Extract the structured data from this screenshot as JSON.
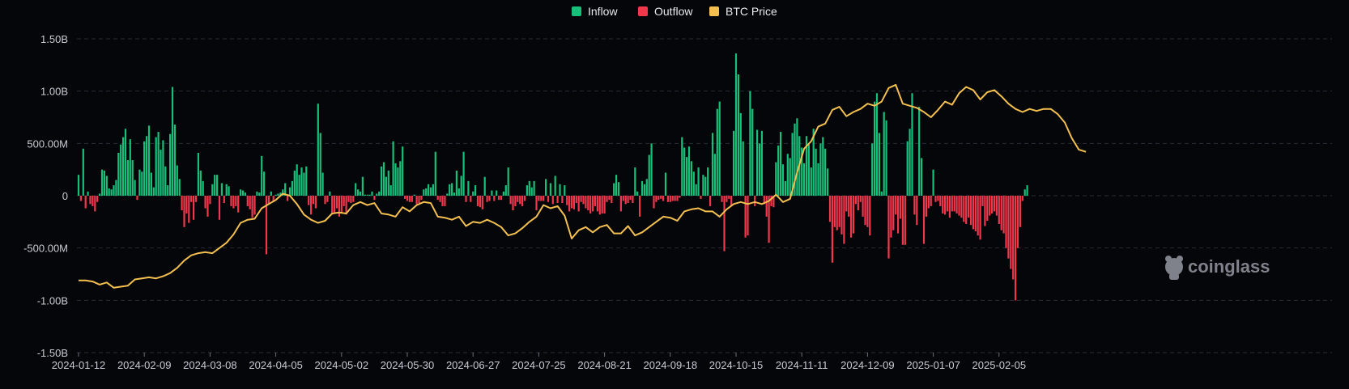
{
  "colors": {
    "background": "#05060a",
    "grid": "#2a2d36",
    "inflow": "#17c07a",
    "outflow": "#f0384d",
    "price": "#f3c04f",
    "text": "#c9ccd4"
  },
  "watermark": "coinglass",
  "chart_data": {
    "type": "bar",
    "legend": [
      {
        "key": "inflow",
        "label": "Inflow"
      },
      {
        "key": "outflow",
        "label": "Outflow"
      },
      {
        "key": "price",
        "label": "BTC Price"
      }
    ],
    "legend_position": "top-center",
    "grid": true,
    "ylim": [
      -1500000000,
      1500000000
    ],
    "y_ticks": [
      {
        "value": 1500000000,
        "label": "1.50B"
      },
      {
        "value": 1000000000,
        "label": "1.00B"
      },
      {
        "value": 500000000,
        "label": "500.00M"
      },
      {
        "value": 0,
        "label": "0"
      },
      {
        "value": -500000000,
        "label": "-500.00M"
      },
      {
        "value": -1000000000,
        "label": "-1.00B"
      },
      {
        "value": -1500000000,
        "label": "-1.50B"
      }
    ],
    "x_ticks": [
      {
        "index": 0,
        "label": "2024-01-12"
      },
      {
        "index": 28,
        "label": "2024-02-09"
      },
      {
        "index": 56,
        "label": "2024-03-08"
      },
      {
        "index": 84,
        "label": "2024-04-05"
      },
      {
        "index": 112,
        "label": "2024-05-02"
      },
      {
        "index": 140,
        "label": "2024-05-30"
      },
      {
        "index": 168,
        "label": "2024-06-27"
      },
      {
        "index": 196,
        "label": "2024-07-25"
      },
      {
        "index": 224,
        "label": "2024-08-21"
      },
      {
        "index": 252,
        "label": "2024-09-18"
      },
      {
        "index": 280,
        "label": "2024-10-15"
      },
      {
        "index": 308,
        "label": "2024-11-11"
      },
      {
        "index": 336,
        "label": "2024-12-09"
      },
      {
        "index": 364,
        "label": "2025-01-07"
      },
      {
        "index": 392,
        "label": "2025-02-05"
      }
    ],
    "flows_m": [
      200,
      -50,
      450,
      -120,
      40,
      -80,
      -100,
      -150,
      -60,
      20,
      250,
      240,
      190,
      70,
      60,
      100,
      150,
      410,
      490,
      560,
      640,
      340,
      540,
      340,
      150,
      -40,
      250,
      230,
      520,
      570,
      670,
      220,
      80,
      560,
      610,
      440,
      530,
      280,
      100,
      590,
      1040,
      680,
      290,
      160,
      -140,
      -300,
      -170,
      -260,
      -60,
      -230,
      -60,
      410,
      240,
      140,
      -120,
      -200,
      -80,
      110,
      200,
      200,
      -230,
      120,
      -70,
      110,
      90,
      -100,
      -120,
      -100,
      -160,
      60,
      50,
      30,
      -100,
      -130,
      -210,
      -180,
      40,
      30,
      380,
      230,
      -560,
      -80,
      40,
      -60,
      10,
      20,
      30,
      60,
      120,
      -50,
      80,
      140,
      240,
      300,
      200,
      270,
      220,
      280,
      -90,
      -180,
      -80,
      -120,
      880,
      600,
      220,
      -80,
      -60,
      40,
      -180,
      -160,
      -120,
      -200,
      -160,
      -100,
      -180,
      -60,
      -70,
      -60,
      120,
      60,
      40,
      180,
      10,
      10,
      10,
      40,
      -40,
      20,
      40,
      280,
      320,
      180,
      240,
      100,
      520,
      310,
      270,
      330,
      470,
      -30,
      -50,
      -60,
      -60,
      10,
      -80,
      -70,
      -40,
      60,
      70,
      110,
      80,
      110,
      420,
      -40,
      -60,
      -100,
      -100,
      20,
      110,
      120,
      30,
      240,
      70,
      190,
      420,
      -60,
      140,
      -60,
      40,
      100,
      -100,
      -110,
      -130,
      180,
      -60,
      -50,
      50,
      -50,
      50,
      -40,
      -40,
      40,
      100,
      270,
      -80,
      -140,
      -100,
      -60,
      -80,
      -100,
      -50,
      100,
      140,
      80,
      140,
      -140,
      -50,
      -50,
      -50,
      160,
      -60,
      120,
      -80,
      190,
      -70,
      110,
      -70,
      100,
      -90,
      -150,
      -120,
      -130,
      -70,
      -150,
      -60,
      -80,
      -120,
      -140,
      -170,
      -150,
      -100,
      -150,
      -180,
      -170,
      -170,
      -60,
      -40,
      -70,
      120,
      200,
      130,
      -150,
      -50,
      -80,
      -70,
      -40,
      -70,
      270,
      40,
      -200,
      140,
      110,
      160,
      390,
      500,
      -120,
      -60,
      -40,
      -30,
      -50,
      220,
      -60,
      -60,
      -50,
      -50,
      -50,
      -20,
      560,
      460,
      370,
      470,
      330,
      230,
      110,
      270,
      -30,
      200,
      180,
      270,
      -100,
      600,
      400,
      830,
      900,
      -60,
      -530,
      -60,
      -30,
      -100,
      620,
      1360,
      1160,
      790,
      520,
      -400,
      -380,
      1000,
      830,
      -100,
      630,
      500,
      620,
      -80,
      -200,
      -450,
      -100,
      -110,
      320,
      480,
      610,
      300,
      140,
      400,
      360,
      600,
      690,
      740,
      570,
      460,
      310,
      570,
      490,
      270,
      640,
      450,
      310,
      500,
      560,
      450,
      260,
      -250,
      -640,
      -300,
      -330,
      -300,
      -370,
      -460,
      -150,
      -200,
      -400,
      -360,
      -80,
      -140,
      -60,
      -200,
      -280,
      -300,
      -380,
      500,
      900,
      980,
      600,
      40,
      800,
      720,
      -600,
      -400,
      -330,
      -180,
      -360,
      -220,
      -470,
      -470,
      520,
      640,
      980,
      -180,
      -280,
      850,
      360,
      -460,
      -200,
      -120,
      -100,
      250,
      -60,
      -50,
      -100,
      -170,
      -180,
      -150,
      -210,
      -150,
      -150,
      -170,
      -190,
      -210,
      -250,
      -270,
      -210,
      -280,
      -320,
      -340,
      -380,
      -420,
      -100,
      -290,
      -240,
      -190,
      -170,
      -150,
      -190,
      -270,
      -330,
      -360,
      -500,
      -600,
      -700,
      -800,
      -1000,
      -500,
      -300,
      -50,
      60,
      100
    ],
    "price_points": [
      [
        0,
        -810
      ],
      [
        3,
        -810
      ],
      [
        6,
        -820
      ],
      [
        9,
        -850
      ],
      [
        12,
        -830
      ],
      [
        15,
        -880
      ],
      [
        18,
        -870
      ],
      [
        21,
        -860
      ],
      [
        24,
        -800
      ],
      [
        27,
        -790
      ],
      [
        30,
        -780
      ],
      [
        33,
        -790
      ],
      [
        36,
        -770
      ],
      [
        39,
        -740
      ],
      [
        42,
        -690
      ],
      [
        45,
        -620
      ],
      [
        48,
        -570
      ],
      [
        51,
        -550
      ],
      [
        54,
        -540
      ],
      [
        57,
        -550
      ],
      [
        60,
        -500
      ],
      [
        63,
        -450
      ],
      [
        66,
        -370
      ],
      [
        69,
        -260
      ],
      [
        72,
        -230
      ],
      [
        75,
        -220
      ],
      [
        78,
        -120
      ],
      [
        81,
        -80
      ],
      [
        84,
        -40
      ],
      [
        87,
        20
      ],
      [
        90,
        0
      ],
      [
        93,
        -80
      ],
      [
        96,
        -180
      ],
      [
        99,
        -230
      ],
      [
        102,
        -260
      ],
      [
        105,
        -240
      ],
      [
        108,
        -170
      ],
      [
        111,
        -160
      ],
      [
        114,
        -170
      ],
      [
        117,
        -90
      ],
      [
        120,
        -60
      ],
      [
        123,
        -90
      ],
      [
        126,
        -70
      ],
      [
        129,
        -170
      ],
      [
        132,
        -180
      ],
      [
        135,
        -200
      ],
      [
        138,
        -110
      ],
      [
        141,
        -150
      ],
      [
        144,
        -90
      ],
      [
        147,
        -60
      ],
      [
        150,
        -70
      ],
      [
        153,
        -200
      ],
      [
        156,
        -210
      ],
      [
        159,
        -230
      ],
      [
        162,
        -200
      ],
      [
        165,
        -290
      ],
      [
        168,
        -250
      ],
      [
        171,
        -260
      ],
      [
        174,
        -230
      ],
      [
        177,
        -260
      ],
      [
        180,
        -300
      ],
      [
        183,
        -380
      ],
      [
        186,
        -360
      ],
      [
        189,
        -310
      ],
      [
        192,
        -250
      ],
      [
        195,
        -200
      ],
      [
        198,
        -90
      ],
      [
        201,
        -120
      ],
      [
        204,
        -100
      ],
      [
        207,
        -190
      ],
      [
        210,
        -410
      ],
      [
        213,
        -330
      ],
      [
        216,
        -300
      ],
      [
        219,
        -350
      ],
      [
        222,
        -300
      ],
      [
        225,
        -280
      ],
      [
        228,
        -360
      ],
      [
        231,
        -360
      ],
      [
        234,
        -290
      ],
      [
        237,
        -380
      ],
      [
        240,
        -350
      ],
      [
        243,
        -300
      ],
      [
        246,
        -250
      ],
      [
        249,
        -200
      ],
      [
        252,
        -210
      ],
      [
        255,
        -240
      ],
      [
        258,
        -150
      ],
      [
        261,
        -130
      ],
      [
        264,
        -120
      ],
      [
        267,
        -150
      ],
      [
        270,
        -150
      ],
      [
        273,
        -200
      ],
      [
        276,
        -130
      ],
      [
        279,
        -80
      ],
      [
        282,
        -60
      ],
      [
        285,
        -80
      ],
      [
        288,
        -60
      ],
      [
        291,
        -80
      ],
      [
        294,
        -50
      ],
      [
        297,
        10
      ],
      [
        300,
        -60
      ],
      [
        303,
        -30
      ],
      [
        306,
        220
      ],
      [
        309,
        450
      ],
      [
        312,
        520
      ],
      [
        315,
        660
      ],
      [
        318,
        690
      ],
      [
        321,
        820
      ],
      [
        324,
        850
      ],
      [
        327,
        760
      ],
      [
        330,
        800
      ],
      [
        333,
        830
      ],
      [
        336,
        880
      ],
      [
        339,
        860
      ],
      [
        342,
        900
      ],
      [
        345,
        1030
      ],
      [
        348,
        1060
      ],
      [
        351,
        880
      ],
      [
        354,
        860
      ],
      [
        357,
        840
      ],
      [
        360,
        800
      ],
      [
        363,
        750
      ],
      [
        366,
        820
      ],
      [
        369,
        900
      ],
      [
        372,
        870
      ],
      [
        375,
        980
      ],
      [
        378,
        1040
      ],
      [
        381,
        1010
      ],
      [
        384,
        920
      ],
      [
        387,
        990
      ],
      [
        390,
        1010
      ],
      [
        393,
        950
      ],
      [
        396,
        880
      ],
      [
        399,
        830
      ],
      [
        402,
        800
      ],
      [
        405,
        830
      ],
      [
        408,
        810
      ],
      [
        411,
        830
      ],
      [
        414,
        830
      ],
      [
        417,
        780
      ],
      [
        420,
        700
      ],
      [
        423,
        550
      ],
      [
        426,
        440
      ],
      [
        429,
        420
      ]
    ]
  }
}
